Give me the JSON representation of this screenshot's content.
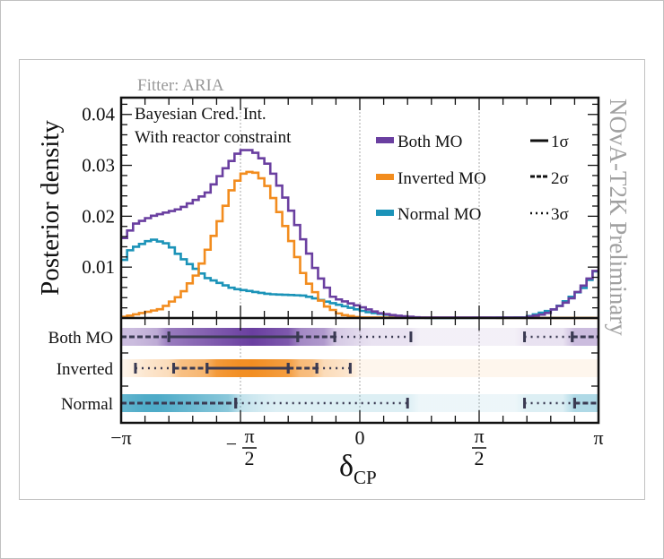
{
  "chart_data": {
    "type": "histogram",
    "fitter_label": "Fitter: ARIA",
    "watermark": "NOvA-T2K Preliminary",
    "annotation": [
      "Bayesian Cred. Int.",
      "With reactor constraint"
    ],
    "ylabel": "Posterior density",
    "xlabel_main": "δ",
    "xlabel_sub": "CP",
    "xlim_over_pi": [
      -1,
      1
    ],
    "ylim": [
      0,
      0.0433
    ],
    "yticks": [
      {
        "value": 0.01,
        "label": "0.01"
      },
      {
        "value": 0.02,
        "label": "0.02"
      },
      {
        "value": 0.03,
        "label": "0.03"
      },
      {
        "value": 0.04,
        "label": "0.04"
      }
    ],
    "xticks": [
      {
        "value_over_pi": -1,
        "label": "−π",
        "type": "plain"
      },
      {
        "value_over_pi": -0.5,
        "label": "π|2",
        "type": "neg-frac"
      },
      {
        "value_over_pi": 0,
        "label": "0",
        "type": "plain"
      },
      {
        "value_over_pi": 0.5,
        "label": "π|2",
        "type": "frac"
      },
      {
        "value_over_pi": 1,
        "label": "π",
        "type": "plain"
      }
    ],
    "legend": {
      "series": [
        {
          "name": "Both MO",
          "color": "#6a3fa0"
        },
        {
          "name": "Inverted MO",
          "color": "#f28c1e"
        },
        {
          "name": "Normal MO",
          "color": "#1b93b8"
        }
      ],
      "styles": [
        {
          "label": "1σ",
          "dash": "solid"
        },
        {
          "label": "2σ",
          "dash": "dashed"
        },
        {
          "label": "3σ",
          "dash": "dotted"
        }
      ],
      "placement": "top-right"
    },
    "histogram_anchors_over_pi": {
      "Both MO": [
        [
          -1,
          0.015
        ],
        [
          -0.94,
          0.0185
        ],
        [
          -0.87,
          0.02
        ],
        [
          -0.75,
          0.0215
        ],
        [
          -0.64,
          0.0245
        ],
        [
          -0.57,
          0.029
        ],
        [
          -0.5,
          0.033
        ],
        [
          -0.45,
          0.033
        ],
        [
          -0.38,
          0.03
        ],
        [
          -0.3,
          0.0225
        ],
        [
          -0.26,
          0.018
        ],
        [
          -0.18,
          0.009
        ],
        [
          -0.11,
          0.004
        ],
        [
          0,
          0.0023
        ],
        [
          0.08,
          0.001
        ],
        [
          0.15,
          0.0005
        ],
        [
          0.25,
          0.0001
        ],
        [
          0.69,
          0.0001
        ],
        [
          0.78,
          0.0008
        ],
        [
          0.88,
          0.0035
        ],
        [
          0.95,
          0.007
        ],
        [
          1,
          0.01
        ]
      ],
      "Inverted MO": [
        [
          -1,
          0.0001
        ],
        [
          -0.83,
          0.0018
        ],
        [
          -0.75,
          0.0045
        ],
        [
          -0.68,
          0.0088
        ],
        [
          -0.6,
          0.0175
        ],
        [
          -0.53,
          0.026
        ],
        [
          -0.48,
          0.0288
        ],
        [
          -0.43,
          0.0285
        ],
        [
          -0.38,
          0.0255
        ],
        [
          -0.3,
          0.0167
        ],
        [
          -0.23,
          0.0079
        ],
        [
          -0.15,
          0.0026
        ],
        [
          -0.08,
          0.0007
        ],
        [
          0,
          0.0001
        ],
        [
          1,
          0.0
        ]
      ],
      "Normal MO": [
        [
          -1,
          0.0105
        ],
        [
          -0.96,
          0.0135
        ],
        [
          -0.87,
          0.0155
        ],
        [
          -0.8,
          0.0145
        ],
        [
          -0.75,
          0.012
        ],
        [
          -0.64,
          0.0079
        ],
        [
          -0.53,
          0.0058
        ],
        [
          -0.38,
          0.0047
        ],
        [
          -0.23,
          0.0044
        ],
        [
          -0.12,
          0.003
        ],
        [
          0.03,
          0.0012
        ],
        [
          0.18,
          0.0002
        ],
        [
          0.3,
          0.0
        ],
        [
          0.69,
          0.0001
        ],
        [
          0.82,
          0.0018
        ],
        [
          0.94,
          0.006
        ],
        [
          1,
          0.01
        ]
      ]
    },
    "bins": 80,
    "intervals_over_pi": {
      "Both MO": {
        "label": "Both MO",
        "segments": [
          {
            "from": -1.0,
            "to": -0.8,
            "sigma": 2
          },
          {
            "from": -0.8,
            "to": -0.26,
            "sigma": 1
          },
          {
            "from": -0.26,
            "to": -0.105,
            "sigma": 2
          },
          {
            "from": -0.105,
            "to": 0.214,
            "sigma": 3
          },
          {
            "from": 0.69,
            "to": 0.89,
            "sigma": 3
          },
          {
            "from": 0.89,
            "to": 1.0,
            "sigma": 2
          }
        ],
        "shade_center": -0.45
      },
      "Inverted MO": {
        "label": "Inverted",
        "segments": [
          {
            "from": -0.94,
            "to": -0.78,
            "sigma": 3
          },
          {
            "from": -0.78,
            "to": -0.64,
            "sigma": 2
          },
          {
            "from": -0.64,
            "to": -0.3,
            "sigma": 1
          },
          {
            "from": -0.3,
            "to": -0.18,
            "sigma": 2
          },
          {
            "from": -0.18,
            "to": -0.04,
            "sigma": 3
          }
        ],
        "shade_center": -0.47
      },
      "Normal MO": {
        "label": "Normal",
        "segments": [
          {
            "from": -1.0,
            "to": -0.52,
            "sigma": 2
          },
          {
            "from": -0.52,
            "to": 0.2,
            "sigma": 3
          },
          {
            "from": 0.69,
            "to": 0.9,
            "sigma": 3
          },
          {
            "from": 0.9,
            "to": 1.0,
            "sigma": 2
          }
        ],
        "shade_center": -0.87
      }
    }
  }
}
